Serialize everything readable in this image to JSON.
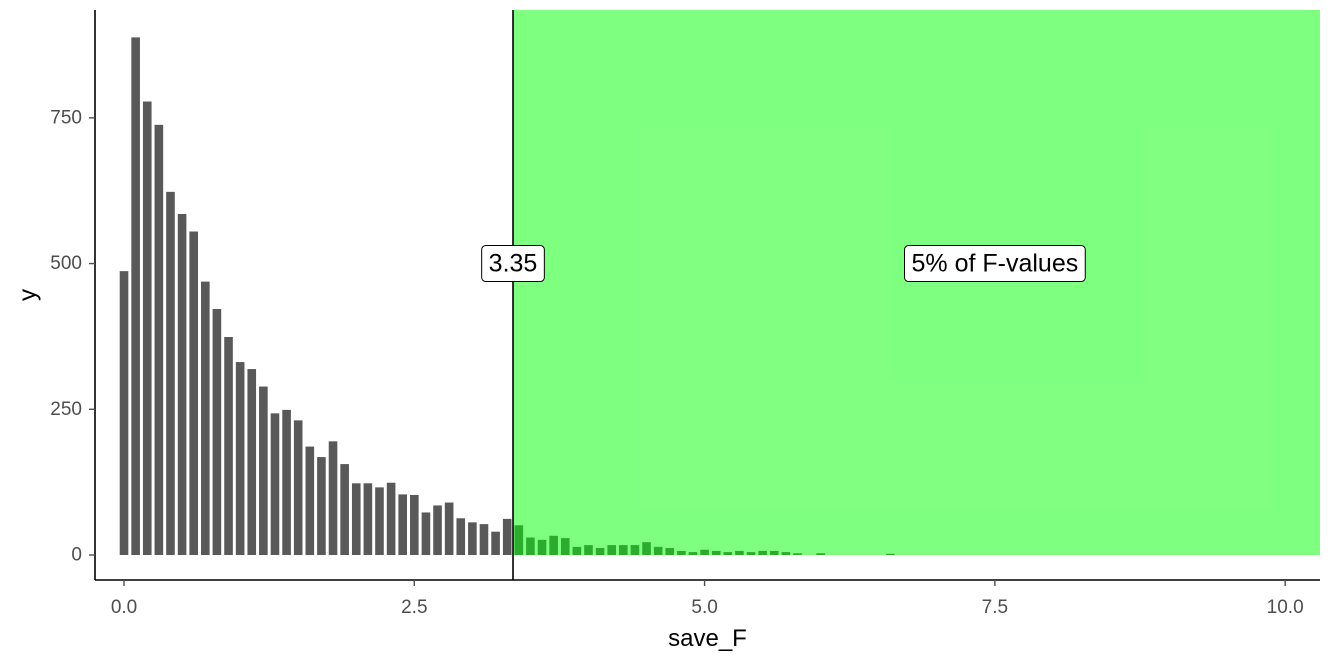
{
  "chart_data": {
    "type": "bar",
    "title": "",
    "xlabel": "save_F",
    "ylabel": "y",
    "xlim": [
      -0.25,
      10.3
    ],
    "ylim": [
      0,
      935
    ],
    "x_ticks": [
      0.0,
      2.5,
      5.0,
      7.5,
      10.0
    ],
    "x_tick_labels": [
      "0.0",
      "2.5",
      "5.0",
      "7.5",
      "10.0"
    ],
    "y_ticks": [
      0,
      250,
      500,
      750
    ],
    "y_tick_labels": [
      "0",
      "250",
      "500",
      "750"
    ],
    "grid": false,
    "legend": "none",
    "bin_width": 0.1,
    "bins": [
      {
        "x": 0.0,
        "y": 487
      },
      {
        "x": 0.1,
        "y": 888
      },
      {
        "x": 0.2,
        "y": 778
      },
      {
        "x": 0.3,
        "y": 738
      },
      {
        "x": 0.4,
        "y": 623
      },
      {
        "x": 0.5,
        "y": 585
      },
      {
        "x": 0.6,
        "y": 555
      },
      {
        "x": 0.7,
        "y": 469
      },
      {
        "x": 0.8,
        "y": 422
      },
      {
        "x": 0.9,
        "y": 374
      },
      {
        "x": 1.0,
        "y": 331
      },
      {
        "x": 1.1,
        "y": 319
      },
      {
        "x": 1.2,
        "y": 289
      },
      {
        "x": 1.3,
        "y": 243
      },
      {
        "x": 1.4,
        "y": 249
      },
      {
        "x": 1.5,
        "y": 231
      },
      {
        "x": 1.6,
        "y": 186
      },
      {
        "x": 1.7,
        "y": 168
      },
      {
        "x": 1.8,
        "y": 195
      },
      {
        "x": 1.9,
        "y": 156
      },
      {
        "x": 2.0,
        "y": 123
      },
      {
        "x": 2.1,
        "y": 123
      },
      {
        "x": 2.2,
        "y": 116
      },
      {
        "x": 2.3,
        "y": 124
      },
      {
        "x": 2.4,
        "y": 104
      },
      {
        "x": 2.5,
        "y": 103
      },
      {
        "x": 2.6,
        "y": 73
      },
      {
        "x": 2.7,
        "y": 85
      },
      {
        "x": 2.8,
        "y": 90
      },
      {
        "x": 2.9,
        "y": 63
      },
      {
        "x": 3.0,
        "y": 56
      },
      {
        "x": 3.1,
        "y": 53
      },
      {
        "x": 3.2,
        "y": 40
      },
      {
        "x": 3.3,
        "y": 62
      },
      {
        "x": 3.4,
        "y": 51
      },
      {
        "x": 3.5,
        "y": 30
      },
      {
        "x": 3.6,
        "y": 26
      },
      {
        "x": 3.7,
        "y": 33
      },
      {
        "x": 3.8,
        "y": 29
      },
      {
        "x": 3.9,
        "y": 14
      },
      {
        "x": 4.0,
        "y": 17
      },
      {
        "x": 4.1,
        "y": 12
      },
      {
        "x": 4.2,
        "y": 17
      },
      {
        "x": 4.3,
        "y": 17
      },
      {
        "x": 4.4,
        "y": 17
      },
      {
        "x": 4.5,
        "y": 22
      },
      {
        "x": 4.6,
        "y": 14
      },
      {
        "x": 4.7,
        "y": 12
      },
      {
        "x": 4.8,
        "y": 7
      },
      {
        "x": 4.9,
        "y": 5
      },
      {
        "x": 5.0,
        "y": 9
      },
      {
        "x": 5.1,
        "y": 7
      },
      {
        "x": 5.2,
        "y": 5
      },
      {
        "x": 5.3,
        "y": 7
      },
      {
        "x": 5.4,
        "y": 5
      },
      {
        "x": 5.5,
        "y": 7
      },
      {
        "x": 5.6,
        "y": 7
      },
      {
        "x": 5.7,
        "y": 5
      },
      {
        "x": 5.8,
        "y": 3
      },
      {
        "x": 5.9,
        "y": 0
      },
      {
        "x": 6.0,
        "y": 3
      },
      {
        "x": 6.1,
        "y": 0
      },
      {
        "x": 6.2,
        "y": 0
      },
      {
        "x": 6.3,
        "y": 0
      },
      {
        "x": 6.4,
        "y": 0
      },
      {
        "x": 6.5,
        "y": 0
      },
      {
        "x": 6.6,
        "y": 2
      }
    ],
    "critical_value": 3.35,
    "critical_label": "3.35",
    "region": {
      "x_start": 3.35,
      "x_end": 10.3,
      "label": "5% of F-values",
      "label_x": 7.5,
      "label_y": 500
    },
    "colors": {
      "bar": "#595959",
      "region_fill": "#00ff00",
      "region_opacity": 0.5,
      "vline": "#000000",
      "axis": "#000000",
      "tick_text": "#4d4d4d"
    }
  }
}
